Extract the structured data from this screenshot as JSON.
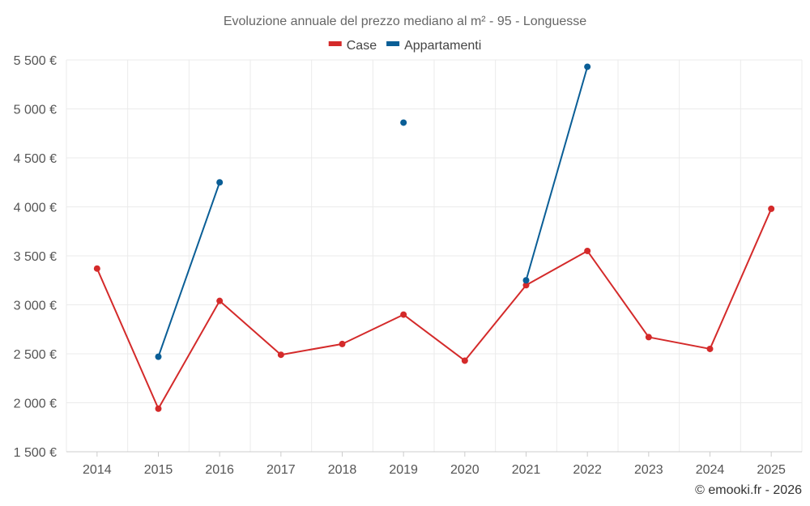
{
  "chart_data": {
    "type": "line",
    "title": "Evoluzione annuale del prezzo mediano al m² - 95 - Longuesse",
    "categories": [
      "2014",
      "2015",
      "2016",
      "2017",
      "2018",
      "2019",
      "2020",
      "2021",
      "2022",
      "2023",
      "2024",
      "2025"
    ],
    "ylim": [
      1500,
      5500
    ],
    "yticks": [
      1500,
      2000,
      2500,
      3000,
      3500,
      4000,
      4500,
      5000,
      5500
    ],
    "ytick_labels": [
      "1 500 €",
      "2 000 €",
      "2 500 €",
      "3 000 €",
      "3 500 €",
      "4 000 €",
      "4 500 €",
      "5 000 €",
      "5 500 €"
    ],
    "grid": true,
    "legend_position": "top-center",
    "series": [
      {
        "name": "Case",
        "color": "#d42a2a",
        "values": [
          3370,
          1940,
          3040,
          2490,
          2600,
          2900,
          2430,
          3200,
          3550,
          2670,
          2550,
          3980
        ]
      },
      {
        "name": "Appartamenti",
        "color": "#0a5e96",
        "values": [
          null,
          2470,
          4250,
          null,
          null,
          4860,
          null,
          3250,
          5430,
          null,
          null,
          null
        ]
      }
    ]
  },
  "footer": "© emooki.fr - 2026"
}
